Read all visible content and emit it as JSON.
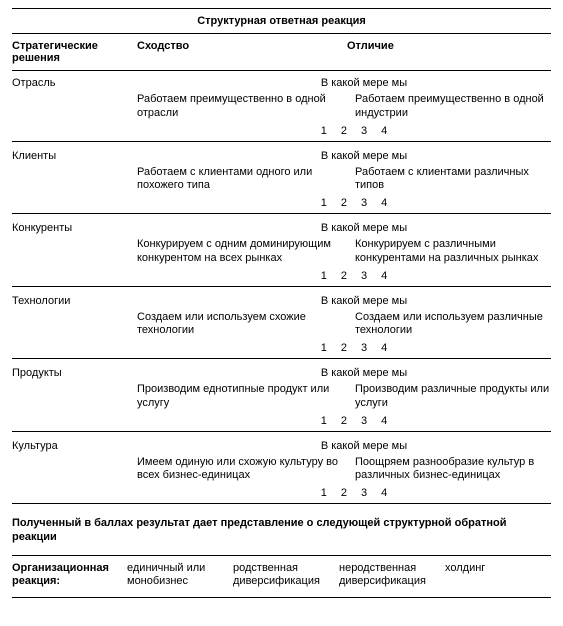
{
  "title": "Структурная ответная реакция",
  "headers": {
    "strategic": "Стратегические решения",
    "similarity": "Сходство",
    "difference": "Отличие"
  },
  "extent_label": "В какой мере мы",
  "scale": [
    "1",
    "2",
    "3",
    "4"
  ],
  "sections": [
    {
      "label": "Отрасль",
      "similarity": "Работаем преимущественно в одной отрасли",
      "difference": "Работаем преимущественно в одной индустрии"
    },
    {
      "label": "Клиенты",
      "similarity": "Работаем с клиентами одного или похожего типа",
      "difference": "Работаем с клиентами различных типов"
    },
    {
      "label": "Конкуренты",
      "similarity": "Конкурируем с одним доминирующим конкурентом на всех рынках",
      "difference": "Конкурируем с различными конкурентами на различных рынках"
    },
    {
      "label": "Технологии",
      "similarity": "Создаем или используем схожие технологии",
      "difference": "Создаем или используем различные технологии"
    },
    {
      "label": "Продукты",
      "similarity": "Производим еднотипные продукт или услугу",
      "difference": "Производим различные продукты или услуги"
    },
    {
      "label": "Культура",
      "similarity": "Имеем одиную или схожую культуру во всех бизнес-единицах",
      "difference": "Поощряем разнообразие культур в различных  бизнес-единицах"
    }
  ],
  "footer_note": "Полученный в баллах результат дает представление о следующей структурной обратной реакции",
  "org": {
    "label": "Организационная реакция:",
    "options": [
      "единичный или монобизнес",
      "родственная диверсификация",
      "неродственная диверсификация",
      "холдинг"
    ]
  }
}
